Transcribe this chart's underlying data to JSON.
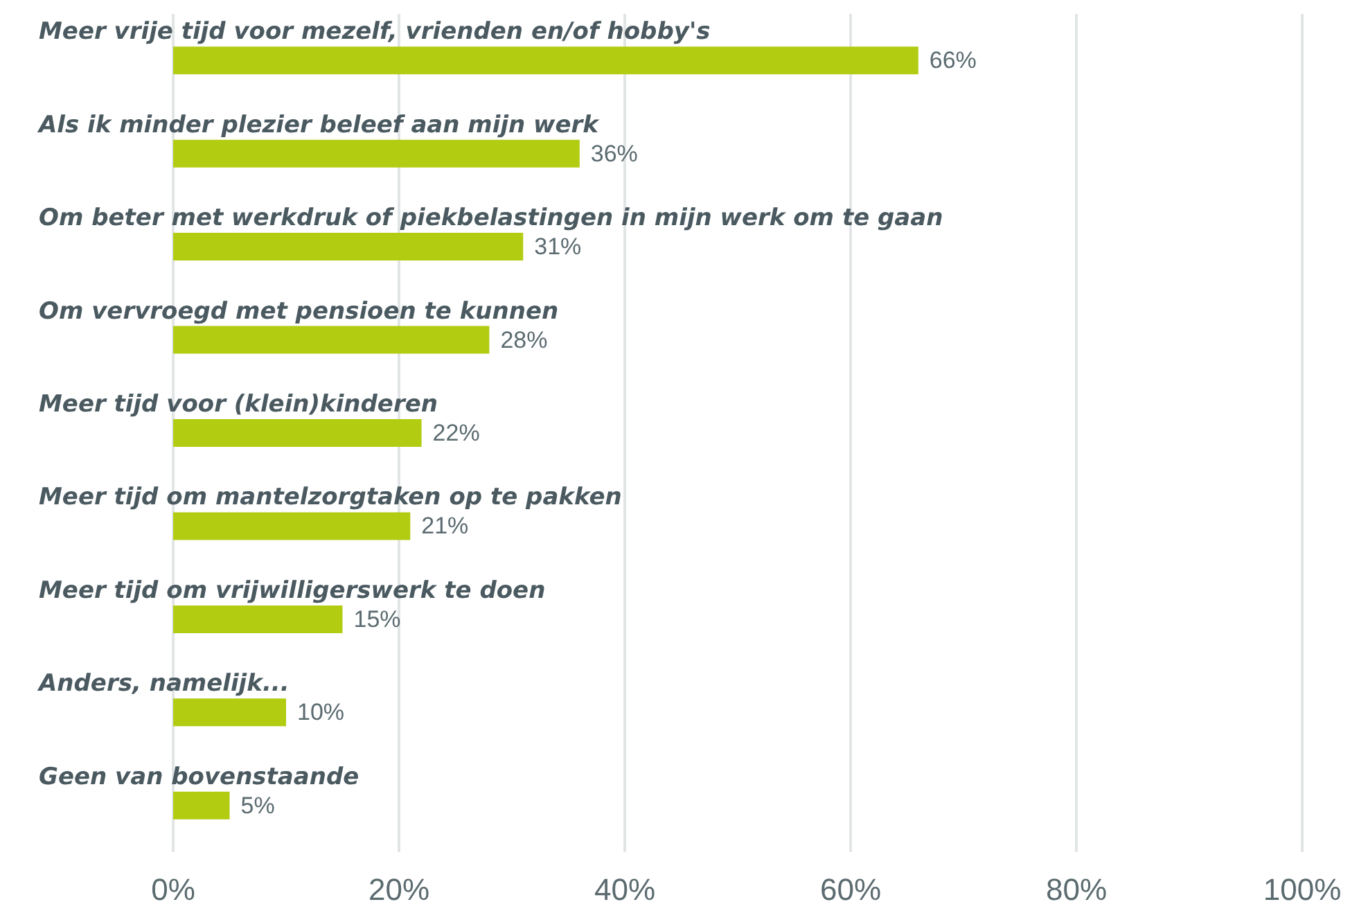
{
  "chart_data": {
    "type": "bar",
    "orientation": "horizontal",
    "categories": [
      "Meer vrije tijd voor mezelf, vrienden en/of hobby's",
      "Als ik minder plezier beleef aan mijn werk",
      "Om beter met werkdruk of piekbelastingen in mijn werk om te gaan",
      "Om vervroegd met pensioen te kunnen",
      "Meer tijd voor (klein)kinderen",
      "Meer tijd om mantelzorgtaken op te pakken",
      "Meer tijd om vrijwilligerswerk te doen",
      "Anders, namelijk...",
      "Geen van bovenstaande"
    ],
    "values": [
      66,
      36,
      31,
      28,
      22,
      21,
      15,
      10,
      5
    ],
    "color": "#b2cc12",
    "value_labels": [
      "66%",
      "36%",
      "31%",
      "28%",
      "22%",
      "21%",
      "15%",
      "10%",
      "5%"
    ],
    "xlim": [
      0,
      100
    ],
    "xticks": [
      {
        "value": 0,
        "label": "0%"
      },
      {
        "value": 20,
        "label": "20%"
      },
      {
        "value": 40,
        "label": "40%"
      },
      {
        "value": 60,
        "label": "60%"
      },
      {
        "value": 80,
        "label": "80%"
      },
      {
        "value": 100,
        "label": "100%"
      }
    ],
    "grid": "x"
  }
}
